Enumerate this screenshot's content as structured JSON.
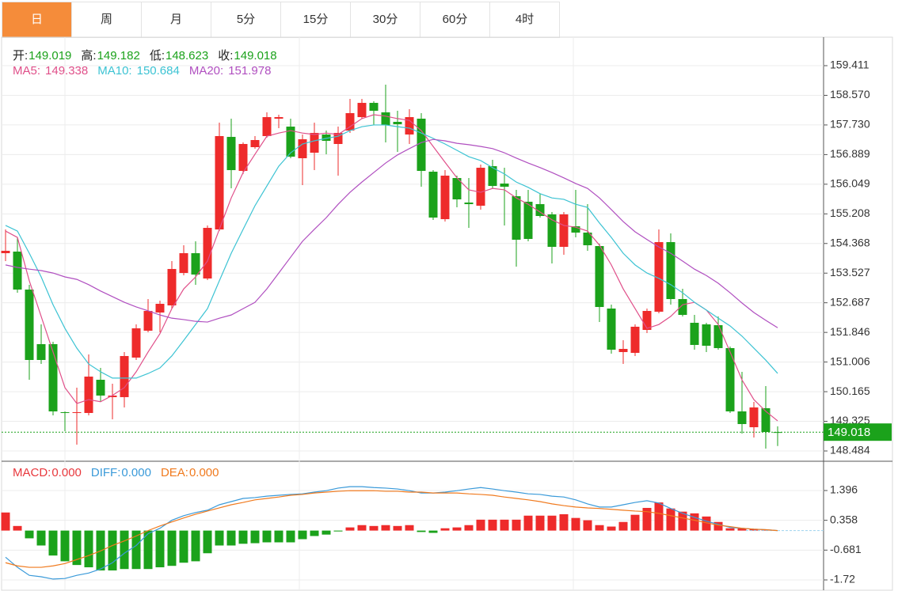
{
  "tabs": [
    "日",
    "周",
    "月",
    "5分",
    "15分",
    "30分",
    "60分",
    "4时"
  ],
  "active_tab": 0,
  "chart_data": [
    {
      "type": "candlestick",
      "ohlc_names": [
        "开:",
        "高:",
        "低:",
        "收:"
      ],
      "up_color": "#ee2b2b",
      "down_color": "#1ba21b",
      "open": [
        154.093,
        154.138,
        153.061,
        151.513,
        151.513,
        149.583,
        149.561,
        149.561,
        150.503,
        150.01,
        150.01,
        151.132,
        151.894,
        152.41,
        152.612,
        153.532,
        154.093,
        153.375,
        154.766,
        157.391,
        156.427,
        157.1,
        157.414,
        157.908,
        157.683,
        156.786,
        156.943,
        157.459,
        157.19,
        157.571,
        157.952,
        158.356,
        158.087,
        157.818,
        157.459,
        157.908,
        156.404,
        155.058,
        156.225,
        155.529,
        155.439,
        156.561,
        156.068,
        155.709,
        155.552,
        155.484,
        155.193,
        154.273,
        154.856,
        154.677,
        154.295,
        152.523,
        151.289,
        151.266,
        151.917,
        152.433,
        154.407,
        152.792,
        152.119,
        152.074,
        152.051,
        151.401,
        149.606,
        149.157,
        149.696,
        149.019
      ],
      "high": [
        154.766,
        154.542,
        153.196,
        152.074,
        151.58,
        149.606,
        150.279,
        151.221,
        150.84,
        150.391,
        151.289,
        152.074,
        152.792,
        152.747,
        153.869,
        154.318,
        154.43,
        154.879,
        157.795,
        157.908,
        157.234,
        157.414,
        158.087,
        158.02,
        157.908,
        157.459,
        157.795,
        157.571,
        157.683,
        158.468,
        158.468,
        158.401,
        158.872,
        158.132,
        158.177,
        158.065,
        156.449,
        156.449,
        156.292,
        156.225,
        156.606,
        156.741,
        156.516,
        155.888,
        155.888,
        155.776,
        155.26,
        155.26,
        155.888,
        155.484,
        154.362,
        152.635,
        151.625,
        152.074,
        152.523,
        154.766,
        154.654,
        153.084,
        152.343,
        152.119,
        152.298,
        151.446,
        150.728,
        149.875,
        150.324,
        149.182
      ],
      "low": [
        153.869,
        152.971,
        150.503,
        150.952,
        149.494,
        149.045,
        148.663,
        149.494,
        149.875,
        149.381,
        149.718,
        151.064,
        151.85,
        151.85,
        152.523,
        153.465,
        153.196,
        153.33,
        154.721,
        155.933,
        156.337,
        157.055,
        157.369,
        157.638,
        156.786,
        156.023,
        156.449,
        156.898,
        156.292,
        157.504,
        157.908,
        157.728,
        157.234,
        156.965,
        157.19,
        155.978,
        155.036,
        154.991,
        155.395,
        154.811,
        155.327,
        155.933,
        154.879,
        153.712,
        154.43,
        155.103,
        153.802,
        154.048,
        154.542,
        154.161,
        152.141,
        151.244,
        150.952,
        151.176,
        151.827,
        152.388,
        152.635,
        152.298,
        151.356,
        151.289,
        151.356,
        149.561,
        148.978,
        148.865,
        148.551,
        148.623
      ],
      "close": [
        154.161,
        153.061,
        151.064,
        151.064,
        149.606,
        149.561,
        149.583,
        150.593,
        150.055,
        150.055,
        151.176,
        151.962,
        152.455,
        152.657,
        153.645,
        154.093,
        153.487,
        154.811,
        157.414,
        156.449,
        157.19,
        157.302,
        157.952,
        157.952,
        156.831,
        157.324,
        157.504,
        157.279,
        157.504,
        158.065,
        158.356,
        158.132,
        157.728,
        157.75,
        157.952,
        156.427,
        155.103,
        156.292,
        155.619,
        155.484,
        156.516,
        156.0,
        155.978,
        154.475,
        154.497,
        155.148,
        154.273,
        155.193,
        154.677,
        154.318,
        152.567,
        151.356,
        151.378,
        152.007,
        152.455,
        154.407,
        152.792,
        152.343,
        151.491,
        151.468,
        151.401,
        149.606,
        149.247,
        149.718,
        149.022,
        149.018
      ],
      "series": [
        {
          "name": "MA5:",
          "color": "#e0508a",
          "values": [
            154.72,
            154.54,
            153.31,
            152.3,
            151.29,
            150.28,
            149.83,
            149.94,
            149.88,
            150.06,
            150.28,
            150.73,
            151.29,
            151.81,
            152.52,
            153.08,
            153.42,
            153.87,
            154.77,
            155.66,
            156.38,
            156.9,
            157.41,
            157.5,
            157.57,
            157.5,
            157.46,
            157.5,
            157.46,
            157.68,
            157.91,
            158.02,
            157.98,
            157.91,
            157.86,
            157.57,
            157.12,
            156.67,
            156.23,
            155.89,
            155.82,
            155.93,
            155.89,
            155.66,
            155.48,
            155.26,
            155.04,
            154.88,
            154.83,
            154.72,
            154.32,
            153.76,
            153.08,
            152.52,
            151.96,
            152.07,
            152.3,
            152.63,
            152.7,
            152.48,
            152.07,
            151.29,
            150.5,
            149.94,
            149.61,
            149.338
          ]
        },
        {
          "name": "MA10:",
          "color": "#3cc3d3",
          "values": [
            154.88,
            154.72,
            154.09,
            153.42,
            152.63,
            151.96,
            151.4,
            150.95,
            150.73,
            150.55,
            150.55,
            150.55,
            150.68,
            150.84,
            151.18,
            151.62,
            152.07,
            152.52,
            153.31,
            154.09,
            154.77,
            155.44,
            156.0,
            156.56,
            156.94,
            157.19,
            157.28,
            157.35,
            157.41,
            157.57,
            157.68,
            157.73,
            157.73,
            157.68,
            157.64,
            157.5,
            157.35,
            157.19,
            157.01,
            156.83,
            156.72,
            156.52,
            156.34,
            156.11,
            155.96,
            155.78,
            155.66,
            155.62,
            155.48,
            155.39,
            154.95,
            154.54,
            154.09,
            153.76,
            153.53,
            153.38,
            153.2,
            152.97,
            152.7,
            152.48,
            152.25,
            152.03,
            151.74,
            151.4,
            151.06,
            150.684
          ]
        },
        {
          "name": "MA20:",
          "color": "#b04fc0",
          "values": [
            153.76,
            153.69,
            153.64,
            153.6,
            153.53,
            153.42,
            153.35,
            153.2,
            153.02,
            152.86,
            152.7,
            152.57,
            152.46,
            152.34,
            152.25,
            152.21,
            152.16,
            152.14,
            152.25,
            152.34,
            152.52,
            152.7,
            153.08,
            153.53,
            153.98,
            154.43,
            154.77,
            155.1,
            155.48,
            155.82,
            156.11,
            156.38,
            156.65,
            156.88,
            157.06,
            157.23,
            157.32,
            157.28,
            157.21,
            157.17,
            157.12,
            157.06,
            156.94,
            156.79,
            156.65,
            156.52,
            156.38,
            156.23,
            156.07,
            155.93,
            155.66,
            155.33,
            154.99,
            154.7,
            154.48,
            154.27,
            154.09,
            153.87,
            153.64,
            153.46,
            153.24,
            152.97,
            152.68,
            152.41,
            152.19,
            151.978
          ]
        }
      ],
      "ylim": [
        148.192,
        160.219
      ],
      "yticks": [
        159.411,
        {
          "value": 158.57,
          "label": "158.570"
        },
        {
          "value": 157.73,
          "label": "157.730"
        },
        156.889,
        156.049,
        155.208,
        154.368,
        153.527,
        152.687,
        151.846,
        151.006,
        150.165,
        149.325,
        148.484
      ],
      "grid": true
    },
    {
      "type": "macd",
      "up_color": "#ee2b2b",
      "down_color": "#1ba21b",
      "series": [
        {
          "name": "MACD:",
          "color": "#e8383d",
          "kind": "bar",
          "value_label": "0.000",
          "values": [
            0.63,
            0.16,
            -0.27,
            -0.52,
            -0.87,
            -1.07,
            -1.2,
            -1.28,
            -1.39,
            -1.39,
            -1.34,
            -1.34,
            -1.34,
            -1.28,
            -1.23,
            -1.12,
            -1.07,
            -0.79,
            -0.52,
            -0.52,
            -0.46,
            -0.44,
            -0.41,
            -0.41,
            -0.41,
            -0.3,
            -0.19,
            -0.14,
            -0.03,
            0.11,
            0.19,
            0.16,
            0.19,
            0.16,
            0.19,
            -0.05,
            -0.08,
            0.08,
            0.11,
            0.19,
            0.38,
            0.38,
            0.38,
            0.38,
            0.52,
            0.52,
            0.52,
            0.57,
            0.44,
            0.36,
            0.19,
            0.14,
            0.3,
            0.55,
            0.79,
            0.98,
            0.77,
            0.66,
            0.6,
            0.49,
            0.3,
            0.08,
            0.08,
            0.05,
            0.03,
            0
          ]
        },
        {
          "name": "DIFF:",
          "color": "#3a9ad9",
          "kind": "line",
          "value_label": "0.000",
          "values": [
            -0.93,
            -1.28,
            -1.56,
            -1.61,
            -1.69,
            -1.67,
            -1.56,
            -1.48,
            -1.34,
            -1.12,
            -0.79,
            -0.52,
            -0.11,
            0.08,
            0.36,
            0.52,
            0.63,
            0.71,
            0.9,
            1.01,
            1.12,
            1.15,
            1.2,
            1.23,
            1.26,
            1.28,
            1.34,
            1.39,
            1.48,
            1.53,
            1.53,
            1.5,
            1.48,
            1.45,
            1.39,
            1.31,
            1.31,
            1.34,
            1.39,
            1.45,
            1.5,
            1.45,
            1.39,
            1.34,
            1.28,
            1.26,
            1.2,
            1.17,
            1.07,
            0.93,
            0.82,
            0.82,
            0.9,
            0.98,
            1.04,
            0.96,
            0.77,
            0.6,
            0.46,
            0.33,
            0.22,
            0.11,
            0.08,
            0.05,
            0.03,
            0
          ]
        },
        {
          "name": "DEA:",
          "color": "#f07a1e",
          "kind": "line",
          "value_label": "0.000",
          "values": [
            -1.12,
            -1.23,
            -1.28,
            -1.28,
            -1.23,
            -1.15,
            -1.01,
            -0.87,
            -0.71,
            -0.52,
            -0.36,
            -0.19,
            0.0,
            0.16,
            0.3,
            0.44,
            0.57,
            0.68,
            0.79,
            0.9,
            0.98,
            1.07,
            1.12,
            1.17,
            1.23,
            1.26,
            1.31,
            1.34,
            1.37,
            1.39,
            1.39,
            1.39,
            1.37,
            1.37,
            1.34,
            1.34,
            1.31,
            1.31,
            1.31,
            1.28,
            1.26,
            1.23,
            1.17,
            1.12,
            1.07,
            1.01,
            0.93,
            0.87,
            0.82,
            0.79,
            0.77,
            0.74,
            0.71,
            0.68,
            0.66,
            0.6,
            0.52,
            0.44,
            0.36,
            0.27,
            0.19,
            0.14,
            0.08,
            0.05,
            0.03,
            0
          ]
        }
      ],
      "ylim": [
        -2.051,
        2.361
      ],
      "yticks": [
        1.396,
        0.358,
        -0.681,
        -1.72
      ],
      "grid": true
    }
  ]
}
